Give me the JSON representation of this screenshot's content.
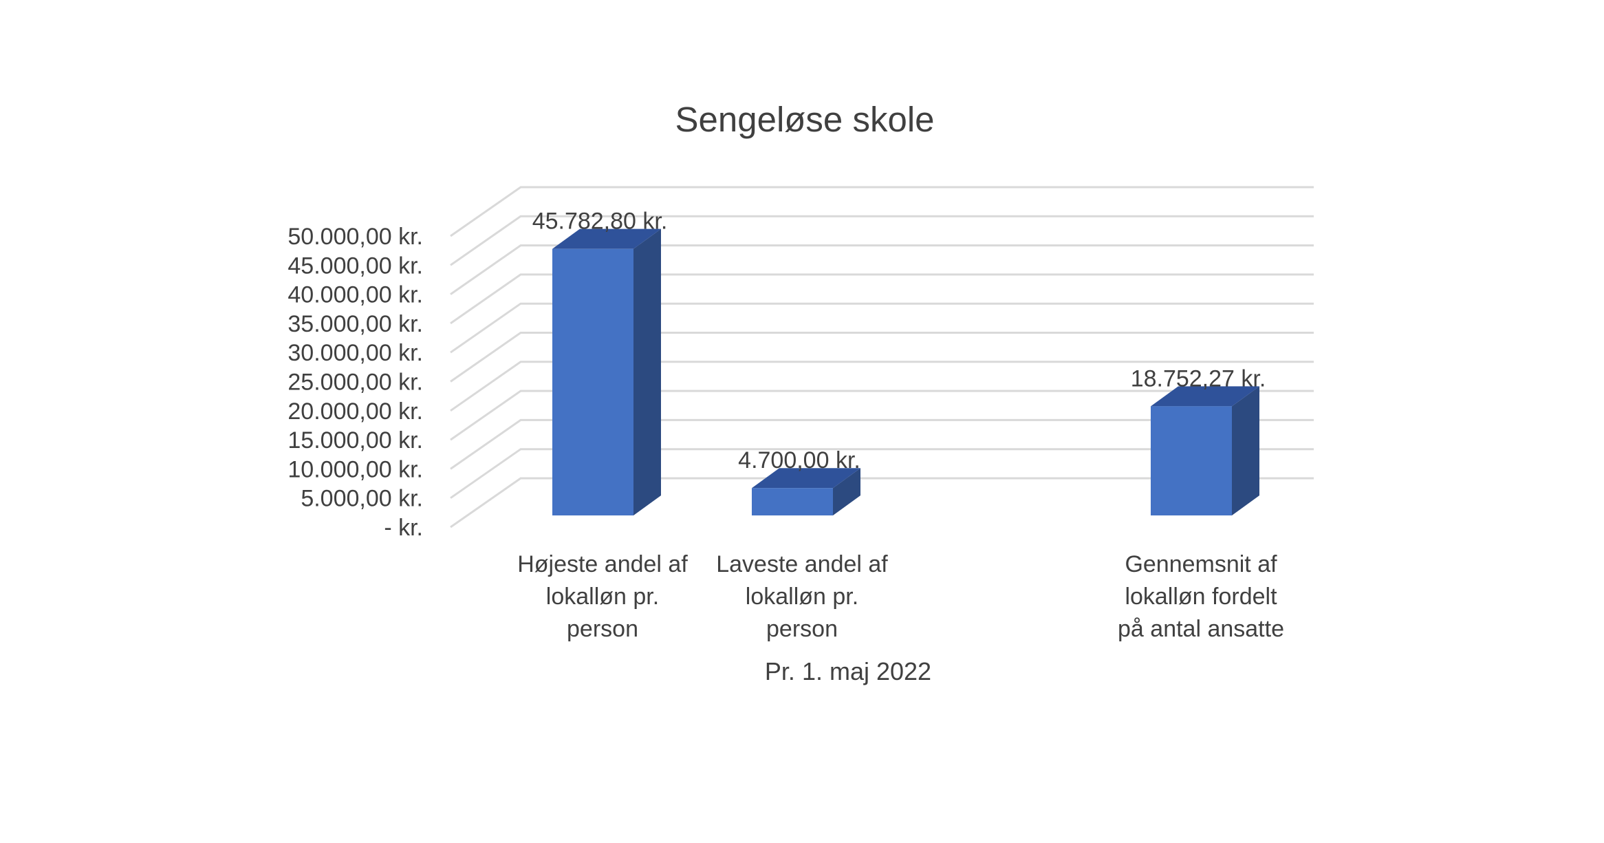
{
  "chart_data": {
    "type": "bar",
    "title": "Sengeløse skole",
    "xlabel": "Pr. 1. maj 2022",
    "ylabel": "",
    "ylim": [
      0,
      50000
    ],
    "y_ticks": [
      {
        "value": 0,
        "label": "-   kr."
      },
      {
        "value": 5000,
        "label": "5.000,00 kr."
      },
      {
        "value": 10000,
        "label": "10.000,00 kr."
      },
      {
        "value": 15000,
        "label": "15.000,00 kr."
      },
      {
        "value": 20000,
        "label": "20.000,00 kr."
      },
      {
        "value": 25000,
        "label": "25.000,00 kr."
      },
      {
        "value": 30000,
        "label": "30.000,00 kr."
      },
      {
        "value": 35000,
        "label": "35.000,00 kr."
      },
      {
        "value": 40000,
        "label": "40.000,00 kr."
      },
      {
        "value": 45000,
        "label": "45.000,00 kr."
      },
      {
        "value": 50000,
        "label": "50.000,00 kr."
      }
    ],
    "categories": [
      [
        "Højeste andel af",
        "lokalløn pr.",
        "person"
      ],
      [
        "Laveste andel af",
        "lokalløn pr.",
        "person"
      ],
      [],
      [
        "Gennemsnit af",
        "lokalløn fordelt",
        "på antal ansatte"
      ]
    ],
    "values": [
      45782.8,
      4700.0,
      null,
      18752.27
    ],
    "data_labels": [
      "45.782,80 kr.",
      "4.700,00 kr.",
      "",
      "18.752,27 kr."
    ],
    "style": "3d-column",
    "grid": true,
    "legend": "none",
    "colors": {
      "front": "#4472C4",
      "side": "#2C4A80",
      "top": "#2F529A",
      "grid": "#D9D9D9",
      "text": "#404040"
    }
  }
}
